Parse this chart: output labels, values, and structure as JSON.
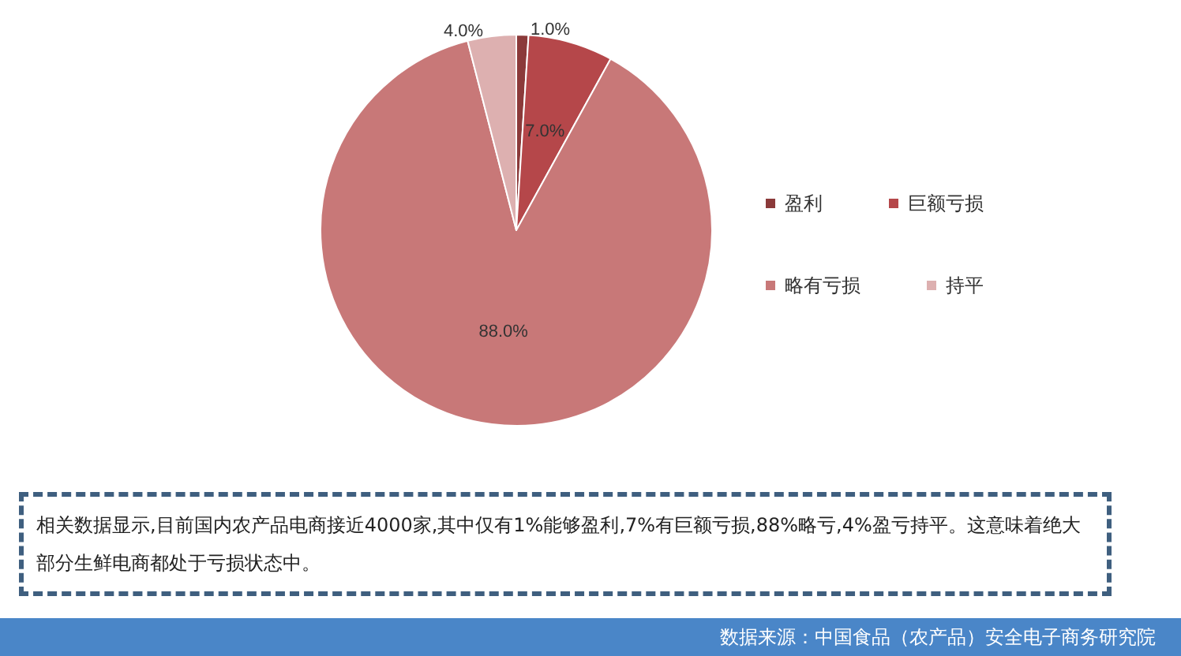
{
  "chart_data": {
    "type": "pie",
    "categories": [
      "盈利",
      "巨额亏损",
      "略有亏损",
      "持平"
    ],
    "values": [
      1.0,
      7.0,
      88.0,
      4.0
    ],
    "colors": [
      "#8b3a3a",
      "#b5474a",
      "#c87878",
      "#ddb0b0"
    ],
    "value_labels": [
      "1.0%",
      "7.0%",
      "88.0%",
      "4.0%"
    ],
    "legend": "right",
    "annotations": [
      "相关数据显示,目前国内农产品电商接近4000家,其中仅有1%能够盈利,7%有巨额亏损,88%略亏,4%盈亏持平。这意味着绝大部分生鲜电商都处于亏损状态中。",
      "数据来源：中国食品（农产品）安全电子商务研究院"
    ]
  }
}
